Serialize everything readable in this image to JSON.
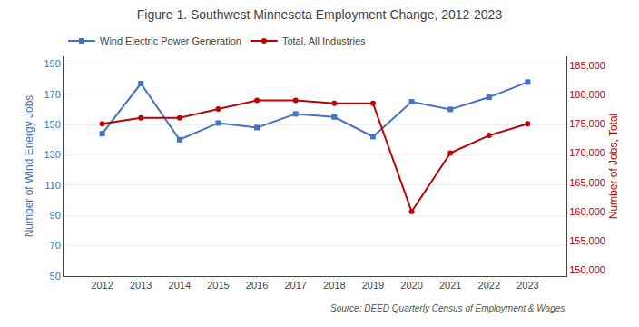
{
  "chart_data": {
    "type": "line",
    "title": "Figure 1. Southwest Minnesota Employment Change, 2012-2023",
    "x": [
      2012,
      2013,
      2014,
      2015,
      2016,
      2017,
      2018,
      2019,
      2020,
      2021,
      2022,
      2023
    ],
    "series": [
      {
        "name": "Wind Electric Power Generation",
        "color": "#4472C4",
        "marker": "square",
        "values": [
          144,
          177,
          140,
          151,
          148,
          157,
          155,
          142,
          165,
          160,
          168,
          178
        ]
      },
      {
        "name": "Total, All Industries",
        "color": "#C00000",
        "marker": "circle",
        "axis": "y2",
        "values": [
          175000,
          176000,
          176000,
          177500,
          179000,
          179000,
          178500,
          178500,
          160000,
          170000,
          173000,
          175000
        ]
      }
    ],
    "ylabel": "Number of Wind Energy Jobs",
    "y2label": "Number of Jobs, Total",
    "annotations": [
      "Source: DEED Quarterly Census of Employment & Wages"
    ],
    "xlim": [
      2011,
      2024
    ],
    "xticks": [
      2012,
      2013,
      2014,
      2015,
      2016,
      2017,
      2018,
      2019,
      2020,
      2021,
      2022,
      2023
    ],
    "ylim": [
      50,
      195
    ],
    "yticks": [
      50,
      70,
      90,
      110,
      130,
      150,
      170,
      190
    ],
    "y2lim": [
      149000,
      186500
    ],
    "y2ticks": [
      {
        "value": 150000,
        "label": "150,000"
      },
      {
        "value": 155000,
        "label": "155,000"
      },
      {
        "value": 160000,
        "label": "160,000"
      },
      {
        "value": 165000,
        "label": "165,000"
      },
      {
        "value": 170000,
        "label": "170,000"
      },
      {
        "value": 175000,
        "label": "175,000"
      },
      {
        "value": 180000,
        "label": "180,000"
      },
      {
        "value": 185000,
        "label": "185,000"
      }
    ],
    "grid": true,
    "legend": "upper left"
  }
}
